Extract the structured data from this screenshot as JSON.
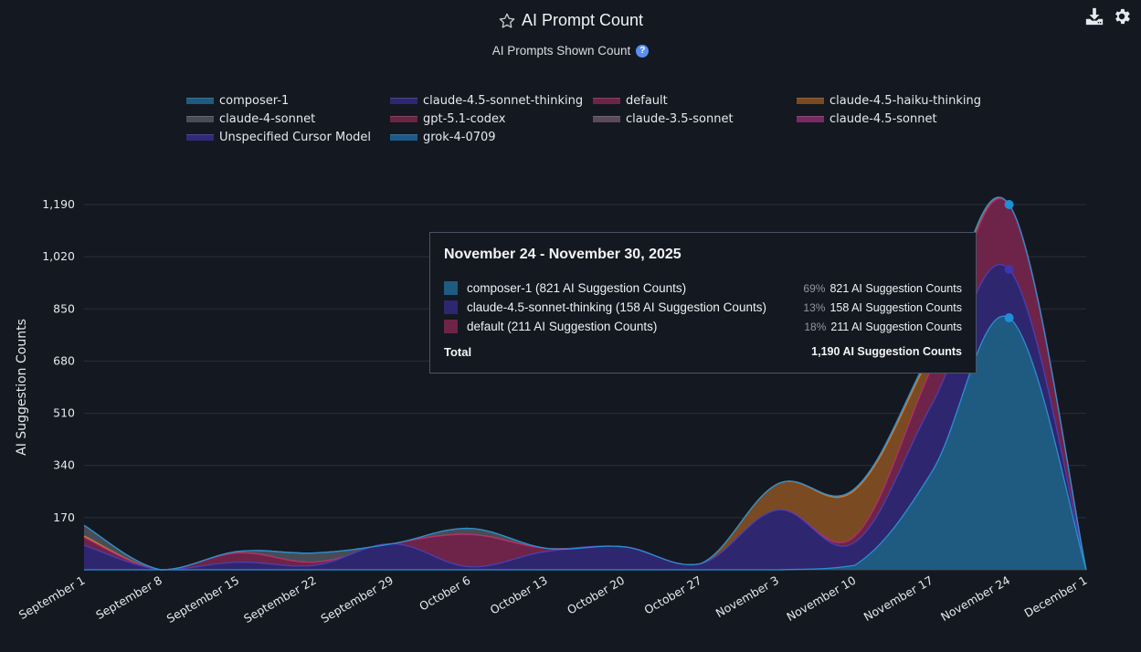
{
  "header": {
    "title": "AI Prompt Count",
    "subtitle": "AI Prompts Shown Count",
    "help_glyph": "?",
    "icons": [
      "star-icon",
      "download-icon",
      "gear-icon",
      "help-icon"
    ]
  },
  "legend": [
    {
      "label": "composer-1",
      "color": "#1f5a80"
    },
    {
      "label": "claude-4.5-sonnet-thinking",
      "color": "#2f2670"
    },
    {
      "label": "default",
      "color": "#6e2448"
    },
    {
      "label": "claude-4.5-haiku-thinking",
      "color": "#7a4a22"
    },
    {
      "label": "claude-4-sonnet",
      "color": "#474d57"
    },
    {
      "label": "gpt-5.1-codex",
      "color": "#6a2542"
    },
    {
      "label": "claude-3.5-sonnet",
      "color": "#5a4a5c"
    },
    {
      "label": "claude-4.5-sonnet",
      "color": "#7a2a63"
    },
    {
      "label": "Unspecified Cursor Model",
      "color": "#2e2a7a"
    },
    {
      "label": "grok-4-0709",
      "color": "#1d5a8a"
    }
  ],
  "tooltip": {
    "title": "November 24 - November 30, 2025",
    "rows": [
      {
        "name": "composer-1 (821 AI Suggestion Counts)",
        "pct": "69%",
        "value": "821 AI Suggestion Counts",
        "color": "#1f5a80"
      },
      {
        "name": "claude-4.5-sonnet-thinking (158 AI Suggestion Counts)",
        "pct": "13%",
        "value": "158 AI Suggestion Counts",
        "color": "#2f2670"
      },
      {
        "name": "default (211 AI Suggestion Counts)",
        "pct": "18%",
        "value": "211 AI Suggestion Counts",
        "color": "#6e2448"
      }
    ],
    "total_label": "Total",
    "total_value": "1,190 AI Suggestion Counts"
  },
  "chart_data": {
    "type": "area",
    "stacked": true,
    "smooth": true,
    "title": "AI Prompt Count",
    "subtitle": "AI Prompts Shown Count",
    "xlabel": "",
    "ylabel": "AI Suggestion Counts",
    "ylim": [
      0,
      1190
    ],
    "yticks": [
      170,
      340,
      510,
      680,
      850,
      1020,
      1190
    ],
    "ytick_labels": [
      "170",
      "340",
      "510",
      "680",
      "850",
      "1,020",
      "1,190"
    ],
    "grid": true,
    "legend_position": "top",
    "categories": [
      "September 1",
      "September 8",
      "September 15",
      "September 22",
      "September 29",
      "October 6",
      "October 13",
      "October 20",
      "October 27",
      "November 3",
      "November 10",
      "November 17",
      "November 24",
      "December 1"
    ],
    "series": [
      {
        "name": "composer-1",
        "color": "#1f5a80",
        "line": "#2a8fd0",
        "values": [
          0,
          0,
          0,
          0,
          0,
          0,
          0,
          0,
          0,
          0,
          15,
          320,
          821,
          0
        ]
      },
      {
        "name": "claude-4.5-sonnet-thinking",
        "color": "#2f2670",
        "line": "#4a3fb0",
        "values": [
          80,
          0,
          25,
          15,
          85,
          10,
          60,
          75,
          20,
          195,
          75,
          220,
          158,
          0
        ]
      },
      {
        "name": "default",
        "color": "#6e2448",
        "line": "#b03070",
        "values": [
          25,
          0,
          30,
          10,
          0,
          105,
          10,
          0,
          0,
          0,
          20,
          120,
          211,
          0
        ]
      },
      {
        "name": "claude-4.5-haiku-thinking",
        "color": "#7a4a22",
        "line": "#d07a30",
        "values": [
          5,
          0,
          0,
          0,
          0,
          0,
          0,
          0,
          0,
          85,
          150,
          50,
          0,
          0
        ]
      },
      {
        "name": "claude-4-sonnet",
        "color": "#474d57",
        "line": "#6a7280",
        "values": [
          35,
          0,
          5,
          30,
          0,
          20,
          0,
          0,
          0,
          0,
          5,
          10,
          0,
          0
        ]
      }
    ],
    "highlighted_category": "November 24"
  }
}
